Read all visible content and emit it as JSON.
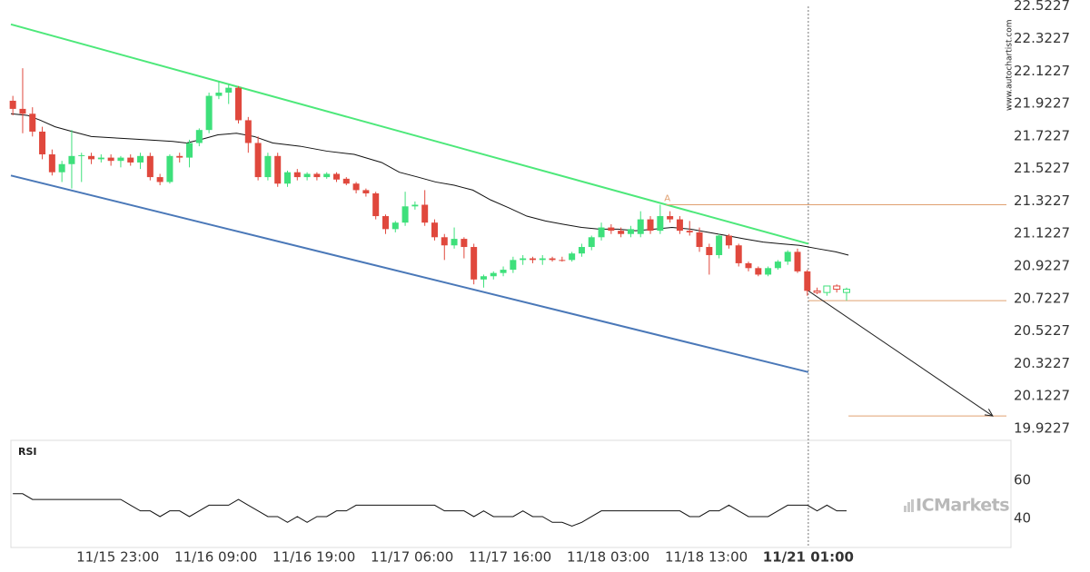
{
  "chart_data": {
    "type": "candlestick",
    "watermark": "www.autochartist.com",
    "logo": "ICMarkets",
    "xlim": [
      -0.2,
      101.3
    ],
    "xticks": [
      {
        "value": 10.7,
        "label": "11/15 23:00"
      },
      {
        "value": 20.7,
        "label": "11/16 09:00"
      },
      {
        "value": 30.7,
        "label": "11/16 19:00"
      },
      {
        "value": 40.7,
        "label": "11/17 06:00"
      },
      {
        "value": 50.7,
        "label": "11/17 16:00"
      },
      {
        "value": 60.7,
        "label": "11/18 03:00"
      },
      {
        "value": 70.7,
        "label": "11/18 13:00"
      },
      {
        "value": 81.1,
        "label": "11/21 01:00"
      }
    ],
    "ylim": [
      19.85,
      22.56
    ],
    "yticks": [
      22.5227,
      22.3227,
      22.1227,
      21.9227,
      21.7227,
      21.5227,
      21.3227,
      21.1227,
      20.9227,
      20.7227,
      20.5227,
      20.3227,
      20.1227,
      19.9227
    ],
    "up_color": "#3ee07b",
    "down_color": "#e0483d",
    "ohlc": [
      [
        21.94,
        21.97,
        21.85,
        21.89
      ],
      [
        21.89,
        22.14,
        21.74,
        21.86
      ],
      [
        21.86,
        21.9,
        21.72,
        21.75
      ],
      [
        21.75,
        21.78,
        21.58,
        21.61
      ],
      [
        21.61,
        21.64,
        21.48,
        21.5
      ],
      [
        21.5,
        21.57,
        21.44,
        21.55
      ],
      [
        21.55,
        21.76,
        21.4,
        21.6
      ],
      [
        21.6,
        21.62,
        21.44,
        21.605
      ],
      [
        21.6,
        21.62,
        21.55,
        21.58
      ],
      [
        21.58,
        21.61,
        21.56,
        21.59
      ],
      [
        21.59,
        21.61,
        21.54,
        21.57
      ],
      [
        21.57,
        21.6,
        21.53,
        21.59
      ],
      [
        21.59,
        21.61,
        21.54,
        21.56
      ],
      [
        21.56,
        21.62,
        21.52,
        21.6
      ],
      [
        21.6,
        21.62,
        21.45,
        21.47
      ],
      [
        21.47,
        21.49,
        21.42,
        21.44
      ],
      [
        21.44,
        21.61,
        21.43,
        21.6
      ],
      [
        21.6,
        21.62,
        21.56,
        21.59
      ],
      [
        21.59,
        21.7,
        21.53,
        21.68
      ],
      [
        21.68,
        21.77,
        21.66,
        21.76
      ],
      [
        21.76,
        21.99,
        21.74,
        21.97
      ],
      [
        21.97,
        22.06,
        21.95,
        21.99
      ],
      [
        21.99,
        22.04,
        21.92,
        22.02
      ],
      [
        22.02,
        22.03,
        21.8,
        21.82
      ],
      [
        21.82,
        21.84,
        21.62,
        21.68
      ],
      [
        21.68,
        21.72,
        21.45,
        21.47
      ],
      [
        21.47,
        21.62,
        21.45,
        21.6
      ],
      [
        21.6,
        21.62,
        21.41,
        21.43
      ],
      [
        21.43,
        21.51,
        21.41,
        21.5
      ],
      [
        21.5,
        21.52,
        21.45,
        21.47
      ],
      [
        21.47,
        21.5,
        21.45,
        21.49
      ],
      [
        21.49,
        21.5,
        21.45,
        21.47
      ],
      [
        21.47,
        21.5,
        21.46,
        21.49
      ],
      [
        21.49,
        21.5,
        21.44,
        21.455
      ],
      [
        21.46,
        21.47,
        21.42,
        21.43
      ],
      [
        21.43,
        21.44,
        21.37,
        21.39
      ],
      [
        21.39,
        21.4,
        21.35,
        21.37
      ],
      [
        21.37,
        21.38,
        21.21,
        21.23
      ],
      [
        21.23,
        21.24,
        21.12,
        21.15
      ],
      [
        21.15,
        21.2,
        21.13,
        21.19
      ],
      [
        21.19,
        21.38,
        21.17,
        21.29
      ],
      [
        21.29,
        21.32,
        21.27,
        21.3
      ],
      [
        21.3,
        21.39,
        21.17,
        21.19
      ],
      [
        21.19,
        21.21,
        21.08,
        21.1
      ],
      [
        21.1,
        21.12,
        20.96,
        21.05
      ],
      [
        21.05,
        21.16,
        21.03,
        21.09
      ],
      [
        21.09,
        21.1,
        20.97,
        21.04
      ],
      [
        21.04,
        21.06,
        20.81,
        20.84
      ],
      [
        20.84,
        20.87,
        20.79,
        20.86
      ],
      [
        20.86,
        20.89,
        20.84,
        20.88
      ],
      [
        20.88,
        20.92,
        20.86,
        20.9
      ],
      [
        20.9,
        20.98,
        20.88,
        20.96
      ],
      [
        20.96,
        20.99,
        20.93,
        20.97
      ],
      [
        20.97,
        20.98,
        20.94,
        20.96
      ],
      [
        20.96,
        20.99,
        20.93,
        20.97
      ],
      [
        20.97,
        20.98,
        20.95,
        20.96
      ],
      [
        20.96,
        20.98,
        20.95,
        20.955
      ],
      [
        20.96,
        21.01,
        20.95,
        21.0
      ],
      [
        21.0,
        21.06,
        20.98,
        21.04
      ],
      [
        21.04,
        21.11,
        21.02,
        21.1
      ],
      [
        21.1,
        21.19,
        21.08,
        21.16
      ],
      [
        21.16,
        21.18,
        21.12,
        21.14
      ],
      [
        21.14,
        21.16,
        21.1,
        21.12
      ],
      [
        21.12,
        21.17,
        21.1,
        21.15
      ],
      [
        21.12,
        21.26,
        21.1,
        21.21
      ],
      [
        21.21,
        21.23,
        21.12,
        21.14
      ],
      [
        21.14,
        21.3,
        21.12,
        21.23
      ],
      [
        21.23,
        21.26,
        21.19,
        21.21
      ],
      [
        21.21,
        21.23,
        21.12,
        21.14
      ],
      [
        21.14,
        21.2,
        21.11,
        21.13
      ],
      [
        21.13,
        21.16,
        21.01,
        21.04
      ],
      [
        21.04,
        21.06,
        20.87,
        20.99
      ],
      [
        20.99,
        21.12,
        20.97,
        21.11
      ],
      [
        21.11,
        21.12,
        21.03,
        21.05
      ],
      [
        21.05,
        21.06,
        20.92,
        20.94
      ],
      [
        20.94,
        20.95,
        20.89,
        20.91
      ],
      [
        20.91,
        20.92,
        20.86,
        20.87
      ],
      [
        20.87,
        20.92,
        20.86,
        20.91
      ],
      [
        20.91,
        20.96,
        20.9,
        20.95
      ],
      [
        20.95,
        21.02,
        20.93,
        21.01
      ],
      [
        21.01,
        21.03,
        20.88,
        20.89
      ],
      [
        20.89,
        20.9,
        20.74,
        20.77
      ]
    ],
    "pending": {
      "x": [
        82,
        83,
        84,
        85
      ],
      "ohlc": [
        [
          20.77,
          20.79,
          20.75,
          20.76
        ],
        [
          20.76,
          20.8,
          20.74,
          20.8
        ],
        [
          20.8,
          20.81,
          20.76,
          20.78
        ],
        [
          20.76,
          20.79,
          20.71,
          20.78
        ]
      ]
    },
    "ma": {
      "color": "#111111",
      "x": [
        -0.2,
        1.5,
        2.8,
        4.3,
        6.1,
        8.0,
        10.7,
        13.5,
        16.3,
        17.7,
        19.1,
        20.9,
        22.8,
        24.6,
        26.5,
        29.3,
        32.0,
        34.8,
        37.6,
        39.4,
        41.3,
        43.1,
        45.0,
        46.9,
        48.7,
        50.6,
        52.4,
        54.3,
        56.1,
        58.0,
        59.8,
        61.7,
        63.5,
        65.4,
        67.2,
        69.1,
        70.9,
        72.8,
        74.6,
        76.5,
        78.3,
        80.2,
        82.0,
        83.9,
        85.2
      ],
      "values": [
        21.86,
        21.85,
        21.82,
        21.78,
        21.75,
        21.72,
        21.71,
        21.7,
        21.69,
        21.68,
        21.7,
        21.73,
        21.74,
        21.72,
        21.68,
        21.66,
        21.63,
        21.61,
        21.56,
        21.5,
        21.47,
        21.44,
        21.42,
        21.39,
        21.33,
        21.28,
        21.23,
        21.2,
        21.18,
        21.16,
        21.15,
        21.15,
        21.14,
        21.15,
        21.16,
        21.15,
        21.13,
        21.11,
        21.09,
        21.07,
        21.06,
        21.05,
        21.03,
        21.01,
        20.99
      ]
    },
    "channel_upper": {
      "color": "#4de87a",
      "x": [
        -0.2,
        81.1
      ],
      "values": [
        22.41,
        21.06
      ]
    },
    "channel_lower": {
      "color": "#4a78b8",
      "x": [
        -0.2,
        81.1
      ],
      "values": [
        21.48,
        20.27
      ]
    },
    "level_color": "#e0a070",
    "levels": [
      {
        "label": "A",
        "value": 21.3,
        "x_start": 66.6
      },
      {
        "value": 20.71,
        "x_start": 81.1
      },
      {
        "value": 20.0,
        "x_start": 85.2
      }
    ],
    "arrow": {
      "x": [
        81.1,
        99.9
      ],
      "values": [
        20.77,
        20.0
      ]
    },
    "vline_x": 81.1,
    "rsi": {
      "title": "RSI",
      "ylim": [
        24.8,
        81
      ],
      "yticks": [
        60,
        40
      ],
      "values": [
        53,
        53,
        50,
        50,
        50,
        50,
        50,
        50,
        50,
        50,
        50,
        50,
        47,
        44,
        44,
        41,
        44,
        44,
        41,
        44,
        47,
        47,
        47,
        50,
        47,
        44,
        41,
        41,
        38,
        41,
        38,
        41,
        41,
        44,
        44,
        47,
        47,
        47,
        47,
        47,
        47,
        47,
        47,
        47,
        44,
        44,
        44,
        41,
        44,
        41,
        41,
        41,
        44,
        41,
        41,
        38,
        38,
        36,
        38,
        41,
        44,
        44,
        44,
        44,
        44,
        44,
        44,
        44,
        44,
        41,
        41,
        44,
        44,
        47,
        44,
        41,
        41,
        41,
        44,
        47,
        47,
        47,
        44,
        47,
        44,
        44
      ]
    }
  }
}
